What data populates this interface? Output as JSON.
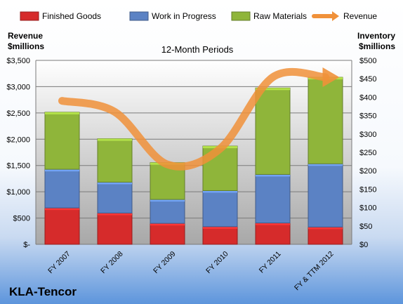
{
  "chart_data": {
    "type": "bar",
    "subtitle": "12-Month Periods",
    "left_axis_label": [
      "Revenue",
      "$millions"
    ],
    "right_axis_label": [
      "Inventory",
      "$millions"
    ],
    "company": "KLA-Tencor",
    "categories": [
      "FY 2007",
      "FY 2008",
      "FY 2009",
      "FY 2010",
      "FY 2011",
      "FY & TTM 2012"
    ],
    "left_ticks": [
      "$-",
      "$500",
      "$1,000",
      "$1,500",
      "$2,000",
      "$2,500",
      "$3,000",
      "$3,500"
    ],
    "right_ticks": [
      "$0",
      "$50",
      "$100",
      "$150",
      "$200",
      "$250",
      "$300",
      "$350",
      "$400",
      "$450",
      "$500"
    ],
    "left_ylim": [
      0,
      3500
    ],
    "right_ylim": [
      0,
      500
    ],
    "stacked": true,
    "legend_position": "top",
    "series": [
      {
        "name": "Finished Goods",
        "axis": "right",
        "color": "#d62b2b",
        "values": [
          99,
          85,
          57,
          48,
          58,
          47
        ]
      },
      {
        "name": "Work in Progress",
        "axis": "right",
        "color": "#5b82c4",
        "values": [
          105,
          84,
          65,
          98,
          132,
          172
        ]
      },
      {
        "name": "Raw Materials",
        "axis": "right",
        "color": "#8fb53a",
        "values": [
          155,
          118,
          100,
          121,
          235,
          235
        ]
      },
      {
        "name": "Revenue",
        "axis": "left",
        "type": "line",
        "color": "#f0913a",
        "values": [
          2730,
          2520,
          1520,
          1820,
          3180,
          3180
        ]
      }
    ]
  }
}
